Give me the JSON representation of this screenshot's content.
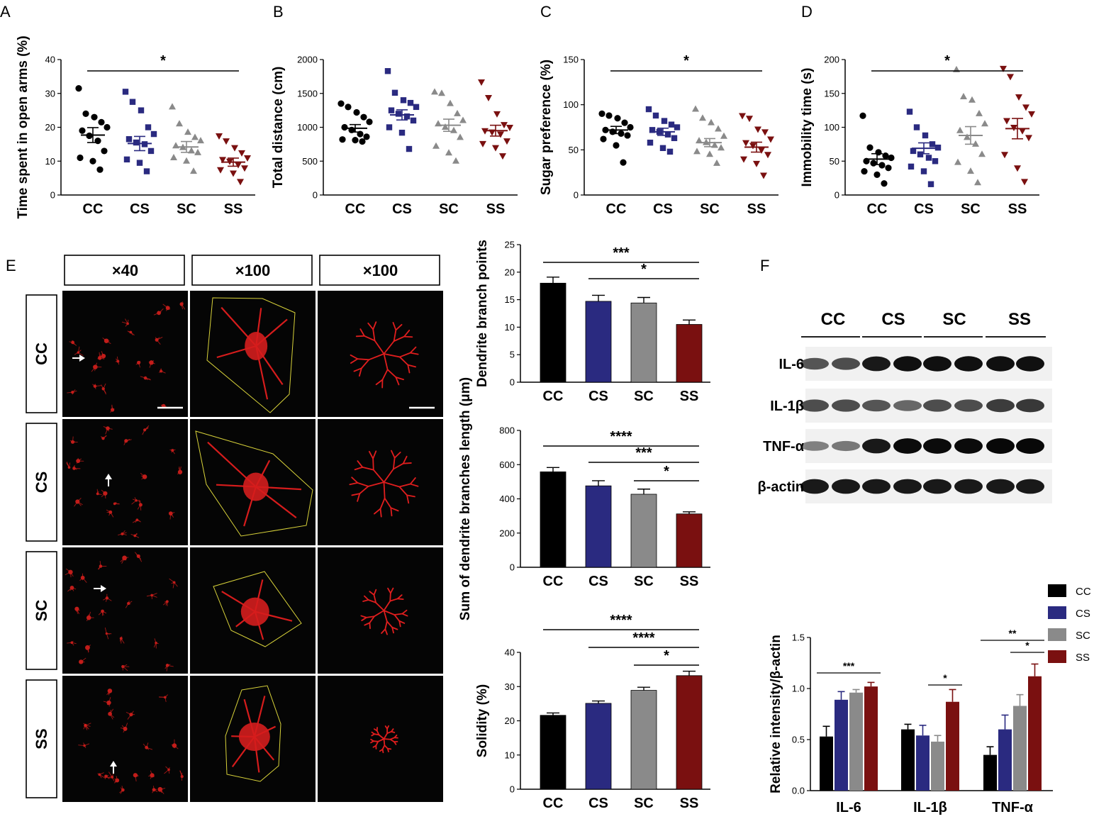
{
  "colors": {
    "CC": "#000000",
    "CS": "#2a2a80",
    "SC": "#8a8a8a",
    "SS": "#7a1010"
  },
  "panel_letters": [
    "A",
    "B",
    "C",
    "D",
    "E",
    "F"
  ],
  "image_panel": {
    "magnifications": [
      "×40",
      "×100",
      "×100"
    ],
    "rows": [
      "CC",
      "CS",
      "SC",
      "SS"
    ]
  },
  "blot": {
    "groups": [
      "CC",
      "CS",
      "SC",
      "SS"
    ],
    "bands": [
      "IL-6",
      "IL-1β",
      "TNF-α",
      "β-actin"
    ],
    "intensities": [
      [
        0.55,
        0.6,
        0.9,
        0.95,
        0.95,
        0.95,
        0.95,
        0.95
      ],
      [
        0.6,
        0.6,
        0.55,
        0.45,
        0.6,
        0.6,
        0.7,
        0.72
      ],
      [
        0.3,
        0.35,
        0.9,
        0.98,
        0.98,
        0.98,
        1.0,
        1.0
      ],
      [
        0.9,
        0.9,
        0.9,
        0.9,
        0.9,
        0.9,
        0.9,
        0.9
      ]
    ]
  },
  "legend": [
    "CC",
    "CS",
    "SC",
    "SS"
  ],
  "chart_data": [
    {
      "type": "scatter",
      "panel": "A",
      "ylabel": "Time spent in open arms (%)",
      "categories": [
        "CC",
        "CS",
        "SC",
        "SS"
      ],
      "ylim": [
        0,
        40
      ],
      "yticks": [
        0,
        10,
        20,
        30,
        40
      ],
      "points": [
        [
          31.5,
          24,
          23,
          21.5,
          20,
          19,
          17.5,
          16,
          13,
          11,
          10,
          7.5
        ],
        [
          30.5,
          27.5,
          25,
          20,
          18,
          16.5,
          15.5,
          15,
          13,
          10.5,
          9.5,
          7
        ],
        [
          26,
          21,
          18.5,
          17,
          16,
          14.5,
          14,
          13,
          12.5,
          11,
          10,
          7
        ],
        [
          17.5,
          16,
          14,
          12.5,
          11,
          10.5,
          10,
          9,
          8,
          7.5,
          6.5,
          4
        ]
      ],
      "mean": [
        17.7,
        15.2,
        14.2,
        9.7
      ],
      "sem": [
        2.2,
        2.1,
        1.6,
        1.2
      ],
      "significance": [
        {
          "from": "CC",
          "to": "SS",
          "label": "*"
        }
      ]
    },
    {
      "type": "scatter",
      "panel": "B",
      "ylabel": "Total distance (cm)",
      "categories": [
        "CC",
        "CS",
        "SC",
        "SS"
      ],
      "ylim": [
        0,
        2000
      ],
      "yticks": [
        0,
        500,
        1000,
        1500,
        2000
      ],
      "points": [
        [
          1350,
          1300,
          1220,
          1150,
          1080,
          1000,
          960,
          900,
          860,
          820,
          810,
          790
        ],
        [
          1830,
          1510,
          1400,
          1360,
          1300,
          1250,
          1200,
          1160,
          1100,
          1000,
          920,
          680
        ],
        [
          1520,
          1500,
          1350,
          1200,
          1100,
          1050,
          1000,
          950,
          850,
          720,
          620,
          500
        ],
        [
          1670,
          1440,
          1200,
          1040,
          1000,
          950,
          930,
          900,
          800,
          760,
          700,
          580
        ]
      ],
      "mean": [
        985,
        1183,
        1030,
        950
      ],
      "sem": [
        55,
        75,
        90,
        80
      ],
      "significance": []
    },
    {
      "type": "scatter",
      "panel": "C",
      "ylabel": "Sugar preference (%)",
      "categories": [
        "CC",
        "CS",
        "SC",
        "SS"
      ],
      "ylim": [
        0,
        150
      ],
      "yticks": [
        0,
        50,
        100,
        150
      ],
      "points": [
        [
          90,
          88,
          85,
          80,
          75,
          72,
          70,
          68,
          66,
          62,
          55,
          36
        ],
        [
          95,
          88,
          82,
          78,
          75,
          72,
          70,
          67,
          63,
          58,
          52,
          48
        ],
        [
          95,
          85,
          80,
          73,
          65,
          60,
          58,
          55,
          52,
          48,
          45,
          35
        ],
        [
          88,
          85,
          73,
          70,
          62,
          58,
          55,
          50,
          45,
          40,
          35,
          22
        ]
      ],
      "mean": [
        72,
        70,
        58,
        53
      ],
      "sem": [
        4,
        4,
        4.5,
        5.5
      ],
      "significance": [
        {
          "from": "CC",
          "to": "SS",
          "label": "*"
        }
      ]
    },
    {
      "type": "scatter",
      "panel": "D",
      "ylabel": "Immobility time (s)",
      "categories": [
        "CC",
        "CS",
        "SC",
        "SS"
      ],
      "ylim": [
        0,
        200
      ],
      "yticks": [
        0,
        50,
        100,
        150,
        200
      ],
      "points": [
        [
          117,
          70,
          63,
          58,
          55,
          50,
          47,
          44,
          40,
          35,
          30,
          17
        ],
        [
          123,
          100,
          88,
          75,
          70,
          65,
          60,
          55,
          50,
          42,
          35,
          16
        ],
        [
          185,
          145,
          140,
          120,
          105,
          95,
          85,
          75,
          60,
          48,
          35,
          18
        ],
        [
          187,
          175,
          145,
          130,
          120,
          110,
          100,
          95,
          85,
          60,
          40,
          20
        ]
      ],
      "mean": [
        53,
        69,
        88,
        98
      ],
      "sem": [
        8,
        8,
        13,
        15
      ],
      "significance": [
        {
          "from": "CC",
          "to": "SS",
          "label": "*"
        }
      ]
    },
    {
      "type": "bar",
      "panel": "E-1",
      "ylabel": "Dendrite branch points",
      "categories": [
        "CC",
        "CS",
        "SC",
        "SS"
      ],
      "values": [
        18,
        14.7,
        14.4,
        10.5
      ],
      "errors": [
        1.1,
        1.1,
        1.0,
        0.8
      ],
      "ylim": [
        0,
        25
      ],
      "yticks": [
        0,
        5,
        10,
        15,
        20,
        25
      ],
      "significance": [
        {
          "from": "CC",
          "to": "SS",
          "label": "***"
        },
        {
          "from": "CS",
          "to": "SS",
          "label": "*"
        }
      ]
    },
    {
      "type": "bar",
      "panel": "E-2",
      "ylabel": "Sum of dendrite branches length (μm)",
      "categories": [
        "CC",
        "CS",
        "SC",
        "SS"
      ],
      "values": [
        558,
        476,
        427,
        312
      ],
      "errors": [
        25,
        30,
        30,
        12
      ],
      "ylim": [
        0,
        800
      ],
      "yticks": [
        0,
        200,
        400,
        600,
        800
      ],
      "significance": [
        {
          "from": "CC",
          "to": "SS",
          "label": "****"
        },
        {
          "from": "CS",
          "to": "SS",
          "label": "***"
        },
        {
          "from": "SC",
          "to": "SS",
          "label": "*"
        }
      ]
    },
    {
      "type": "bar",
      "panel": "E-3",
      "ylabel": "Solidity (%)",
      "categories": [
        "CC",
        "CS",
        "SC",
        "SS"
      ],
      "values": [
        21.6,
        25.1,
        28.9,
        33.2
      ],
      "errors": [
        0.7,
        0.7,
        0.9,
        1.3
      ],
      "ylim": [
        0,
        40
      ],
      "yticks": [
        0,
        10,
        20,
        30,
        40
      ],
      "significance": [
        {
          "from": "CC",
          "to": "SS",
          "label": "****"
        },
        {
          "from": "CS",
          "to": "SS",
          "label": "****"
        },
        {
          "from": "SC",
          "to": "SS",
          "label": "*"
        }
      ]
    },
    {
      "type": "bar",
      "panel": "F",
      "ylabel": "Relative intensity/β-actin",
      "categories": [
        "IL-6",
        "IL-1β",
        "TNF-α"
      ],
      "series": [
        {
          "name": "CC",
          "values": [
            0.53,
            0.6,
            0.35
          ],
          "errors": [
            0.1,
            0.05,
            0.08
          ]
        },
        {
          "name": "CS",
          "values": [
            0.89,
            0.54,
            0.6
          ],
          "errors": [
            0.08,
            0.1,
            0.14
          ]
        },
        {
          "name": "SC",
          "values": [
            0.96,
            0.48,
            0.83
          ],
          "errors": [
            0.03,
            0.06,
            0.11
          ]
        },
        {
          "name": "SS",
          "values": [
            1.02,
            0.87,
            1.12
          ],
          "errors": [
            0.04,
            0.12,
            0.12
          ]
        }
      ],
      "ylim": [
        0,
        1.5
      ],
      "yticks": [
        "0.0",
        "0.5",
        "1.0",
        "1.5"
      ],
      "significance": [
        {
          "category": "IL-6",
          "from": "CC",
          "to": "SS",
          "label": "***"
        },
        {
          "category": "IL-1β",
          "from": "SC",
          "to": "SS",
          "label": "*"
        },
        {
          "category": "TNF-α",
          "from": "CC",
          "to": "SS",
          "label": "**"
        },
        {
          "category": "TNF-α",
          "from": "SC",
          "to": "SS",
          "label": "*"
        }
      ]
    }
  ]
}
